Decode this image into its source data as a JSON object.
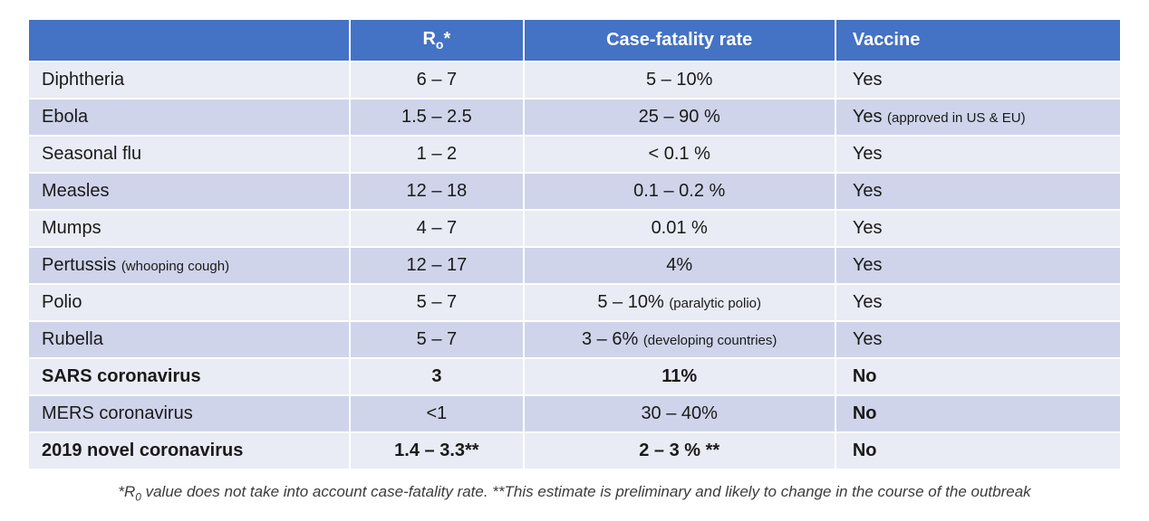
{
  "table": {
    "header": {
      "disease": "",
      "r0_prefix": "R",
      "r0_sub": "o",
      "r0_suffix": "*",
      "cfr": "Case-fatality rate",
      "vaccine": "Vaccine"
    },
    "rows": [
      {
        "disease": "Diphtheria",
        "disease_sub": "",
        "r0": "6 – 7",
        "cfr": "5 – 10%",
        "cfr_sub": "",
        "vaccine": "Yes",
        "vaccine_sub": "",
        "bold": false
      },
      {
        "disease": "Ebola",
        "disease_sub": "",
        "r0": "1.5 – 2.5",
        "cfr": "25 – 90 %",
        "cfr_sub": "",
        "vaccine": "Yes ",
        "vaccine_sub": "(approved in US & EU)",
        "bold": false
      },
      {
        "disease": "Seasonal flu",
        "disease_sub": "",
        "r0": "1 – 2",
        "cfr": "< 0.1 %",
        "cfr_sub": "",
        "vaccine": "Yes",
        "vaccine_sub": "",
        "bold": false
      },
      {
        "disease": "Measles",
        "disease_sub": "",
        "r0": "12 – 18",
        "cfr": "0.1 – 0.2 %",
        "cfr_sub": "",
        "vaccine": "Yes",
        "vaccine_sub": "",
        "bold": false
      },
      {
        "disease": "Mumps",
        "disease_sub": "",
        "r0": "4 – 7",
        "cfr": "0.01 %",
        "cfr_sub": "",
        "vaccine": "Yes",
        "vaccine_sub": "",
        "bold": false
      },
      {
        "disease": "Pertussis ",
        "disease_sub": "(whooping cough)",
        "r0": "12 – 17",
        "cfr": "4%",
        "cfr_sub": "",
        "vaccine": "Yes",
        "vaccine_sub": "",
        "bold": false
      },
      {
        "disease": "Polio",
        "disease_sub": "",
        "r0": "5 – 7",
        "cfr": "5 – 10% ",
        "cfr_sub": "(paralytic polio)",
        "vaccine": "Yes",
        "vaccine_sub": "",
        "bold": false
      },
      {
        "disease": "Rubella",
        "disease_sub": "",
        "r0": "5 – 7",
        "cfr": "3 – 6% ",
        "cfr_sub": "(developing countries)",
        "vaccine": "Yes",
        "vaccine_sub": "",
        "bold": false
      },
      {
        "disease": "SARS coronavirus",
        "disease_sub": "",
        "r0": "3",
        "cfr": "11%",
        "cfr_sub": "",
        "vaccine": "No",
        "vaccine_sub": "",
        "bold": true
      },
      {
        "disease": "MERS coronavirus",
        "disease_sub": "",
        "r0": "<1",
        "cfr": "30 – 40%",
        "cfr_sub": "",
        "vaccine": "No",
        "vaccine_sub": "",
        "bold": false,
        "vaccine_bold": true
      },
      {
        "disease": "2019 novel coronavirus",
        "disease_sub": "",
        "r0": "1.4 – 3.3**",
        "cfr": "2 – 3 % **",
        "cfr_sub": "",
        "vaccine": "No",
        "vaccine_sub": "",
        "bold": true
      }
    ],
    "footnote_prefix": "*R",
    "footnote_sub": "0",
    "footnote_rest": " value does not take into account case-fatality rate. **This estimate is preliminary and likely to change in the course of the outbreak",
    "colors": {
      "header_bg": "#4472c4",
      "band_a": "#e9ebf5",
      "band_b": "#cfd4ea",
      "text": "#1a1a1a"
    }
  }
}
